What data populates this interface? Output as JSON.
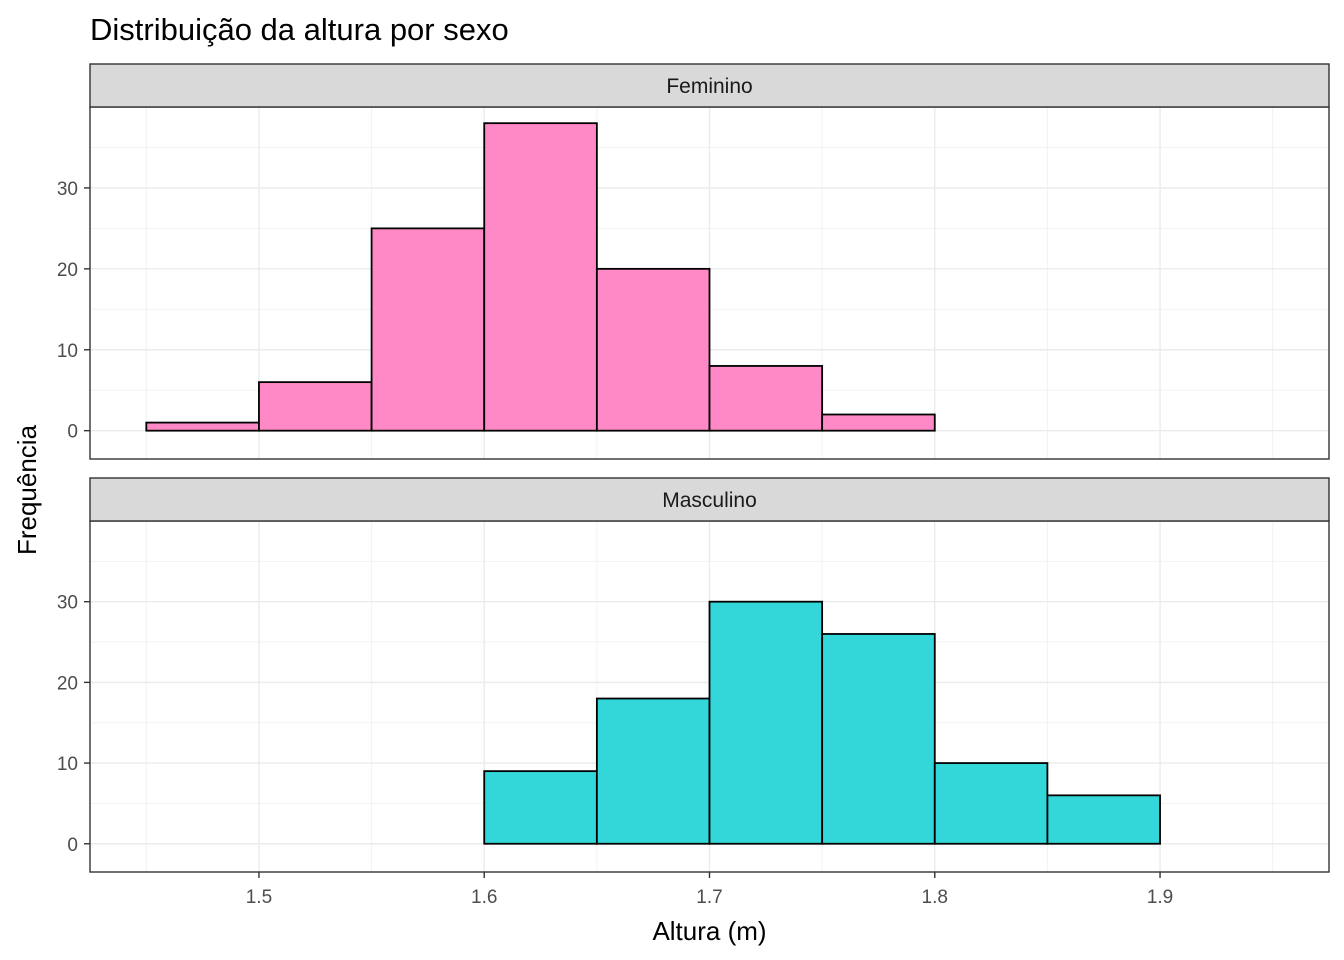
{
  "chart_data": {
    "type": "bar",
    "title": "Distribuição da altura por sexo",
    "xlabel": "Altura (m)",
    "ylabel": "Frequência",
    "xlim": [
      1.425,
      1.975
    ],
    "ylim": [
      -3.5,
      40
    ],
    "x_ticks": [
      1.5,
      1.6,
      1.7,
      1.8,
      1.9
    ],
    "x_tick_labels": [
      "1.5",
      "1.6",
      "1.7",
      "1.8",
      "1.9"
    ],
    "y_ticks": [
      0,
      10,
      20,
      30
    ],
    "y_tick_labels": [
      "0",
      "10",
      "20",
      "30"
    ],
    "bin_width": 0.05,
    "bin_starts": [
      1.45,
      1.5,
      1.55,
      1.6,
      1.65,
      1.7,
      1.75,
      1.8,
      1.85,
      1.9
    ],
    "grid": true,
    "legend": "none",
    "panels": [
      {
        "name": "Feminino",
        "color": "#FF88C6",
        "values": [
          1,
          6,
          25,
          38,
          20,
          8,
          2,
          0,
          0,
          0
        ]
      },
      {
        "name": "Masculino",
        "color": "#33D6D9",
        "values": [
          0,
          0,
          0,
          9,
          18,
          30,
          26,
          10,
          6,
          0
        ]
      }
    ]
  }
}
